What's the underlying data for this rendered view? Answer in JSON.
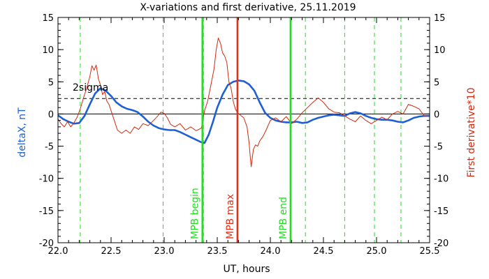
{
  "chart_data": {
    "type": "line",
    "title": "X-variations and first derivative, 25.11.2019",
    "xlabel": "UT, hours",
    "ylabel_left": "deltaX, nT",
    "ylabel_right": "First derivative*10",
    "xlim": [
      22.0,
      25.5
    ],
    "ylim_left": [
      -20,
      15
    ],
    "ylim_right": [
      -20,
      15
    ],
    "x_ticks": [
      22.0,
      22.5,
      23.0,
      23.5,
      24.0,
      24.5,
      25.0,
      25.5
    ],
    "x_tick_labels": [
      "22.0",
      "22.5",
      "23.0",
      "23.5",
      "24.0",
      "24.5",
      "25.0",
      "25.5"
    ],
    "y_ticks": [
      -20,
      -15,
      -10,
      -5,
      0,
      5,
      10,
      15
    ],
    "y_tick_labels": [
      "-20",
      "-15",
      "-10",
      "-5",
      "0",
      "5",
      "10",
      "15"
    ],
    "sigma_level": 2.4,
    "sigma_label": "2sigma",
    "grid": false,
    "colors": {
      "deltaX": "#1f5fd6",
      "derivative": "#d02a10",
      "green": "#22dd22",
      "red": "#e0301a",
      "axis": "#000000"
    },
    "vlines_dashed": [
      22.21,
      22.99,
      23.37,
      24.33,
      24.7,
      24.98,
      25.23
    ],
    "vlines_solid": [
      {
        "x": 23.36,
        "label": "MPB begin",
        "color": "#22dd22"
      },
      {
        "x": 23.69,
        "label": "MPB max",
        "color": "#e0301a"
      },
      {
        "x": 24.19,
        "label": "MPB end",
        "color": "#22dd22"
      }
    ],
    "series": [
      {
        "key": "deltaX",
        "axis": "left",
        "x": [
          22.0,
          22.05,
          22.1,
          22.15,
          22.2,
          22.25,
          22.3,
          22.35,
          22.4,
          22.45,
          22.5,
          22.55,
          22.6,
          22.65,
          22.7,
          22.75,
          22.8,
          22.85,
          22.9,
          22.95,
          23.0,
          23.05,
          23.1,
          23.15,
          23.2,
          23.25,
          23.3,
          23.35,
          23.38,
          23.42,
          23.46,
          23.5,
          23.55,
          23.6,
          23.65,
          23.7,
          23.75,
          23.8,
          23.85,
          23.9,
          23.95,
          24.0,
          24.05,
          24.1,
          24.15,
          24.2,
          24.25,
          24.3,
          24.35,
          24.4,
          24.45,
          24.5,
          24.55,
          24.6,
          24.65,
          24.7,
          24.75,
          24.8,
          24.85,
          24.9,
          24.95,
          25.0,
          25.05,
          25.1,
          25.15,
          25.2,
          25.25,
          25.3,
          25.35,
          25.4,
          25.45,
          25.5
        ],
        "y": [
          -0.2,
          -0.8,
          -1.2,
          -1.5,
          -1.4,
          -0.3,
          1.5,
          3.2,
          4.0,
          3.6,
          2.8,
          1.8,
          1.2,
          0.8,
          0.6,
          0.3,
          -0.4,
          -1.2,
          -1.8,
          -2.2,
          -2.4,
          -2.5,
          -2.5,
          -2.8,
          -3.2,
          -3.6,
          -4.0,
          -4.4,
          -4.5,
          -3.2,
          -1.2,
          1.0,
          3.0,
          4.5,
          5.0,
          5.2,
          5.1,
          4.6,
          3.6,
          1.8,
          0.2,
          -0.6,
          -1.0,
          -1.2,
          -1.3,
          -1.3,
          -1.2,
          -1.4,
          -1.3,
          -0.9,
          -0.6,
          -0.4,
          -0.2,
          -0.1,
          -0.2,
          -0.3,
          0.1,
          0.3,
          0.1,
          -0.3,
          -0.6,
          -0.8,
          -0.9,
          -0.9,
          -1.0,
          -1.2,
          -1.3,
          -1.0,
          -0.6,
          -0.4,
          -0.3,
          -0.3
        ]
      },
      {
        "key": "derivative",
        "axis": "right",
        "x": [
          22.0,
          22.03,
          22.06,
          22.09,
          22.12,
          22.15,
          22.18,
          22.21,
          22.24,
          22.27,
          22.3,
          22.32,
          22.34,
          22.36,
          22.38,
          22.4,
          22.42,
          22.44,
          22.46,
          22.48,
          22.5,
          22.53,
          22.56,
          22.6,
          22.64,
          22.68,
          22.72,
          22.76,
          22.8,
          22.85,
          22.9,
          22.94,
          22.97,
          23.0,
          23.03,
          23.06,
          23.1,
          23.15,
          23.2,
          23.25,
          23.3,
          23.35,
          23.38,
          23.41,
          23.44,
          23.47,
          23.49,
          23.51,
          23.53,
          23.55,
          23.57,
          23.59,
          23.61,
          23.63,
          23.65,
          23.67,
          23.69,
          23.72,
          23.75,
          23.78,
          23.8,
          23.81,
          23.82,
          23.84,
          23.86,
          23.88,
          23.9,
          23.93,
          23.96,
          24.0,
          24.05,
          24.1,
          24.15,
          24.2,
          24.25,
          24.3,
          24.35,
          24.4,
          24.45,
          24.5,
          24.55,
          24.6,
          24.65,
          24.7,
          24.75,
          24.8,
          24.85,
          24.9,
          24.95,
          25.0,
          25.05,
          25.1,
          25.15,
          25.2,
          25.25,
          25.3,
          25.35,
          25.4,
          25.45,
          25.5
        ],
        "y": [
          -0.8,
          -1.5,
          -2.0,
          -1.2,
          -2.0,
          -1.4,
          -0.5,
          0.8,
          2.5,
          4.0,
          5.8,
          7.5,
          6.8,
          7.6,
          5.5,
          4.5,
          3.0,
          3.5,
          2.0,
          1.5,
          0.5,
          -1.0,
          -2.5,
          -3.0,
          -2.5,
          -3.0,
          -2.0,
          -2.4,
          -1.5,
          -1.8,
          -1.0,
          -0.3,
          0.3,
          0.1,
          -0.6,
          -1.6,
          -2.0,
          -1.5,
          -2.5,
          -2.0,
          -2.6,
          -2.2,
          0.5,
          2.0,
          4.5,
          7.0,
          10.0,
          11.8,
          11.0,
          9.5,
          9.0,
          8.0,
          5.0,
          4.0,
          2.0,
          0.8,
          0.2,
          -0.2,
          -0.6,
          -2.0,
          -4.5,
          -6.5,
          -8.2,
          -5.5,
          -4.8,
          -5.0,
          -4.2,
          -3.5,
          -2.5,
          -1.0,
          -0.6,
          -1.2,
          -0.4,
          -1.5,
          -0.8,
          0.2,
          1.0,
          1.8,
          2.5,
          1.8,
          0.8,
          0.3,
          0.2,
          -0.3,
          -0.8,
          -1.2,
          -0.3,
          -1.0,
          -1.5,
          -1.0,
          -0.5,
          -0.9,
          0.0,
          0.4,
          0.0,
          1.5,
          1.2,
          0.8,
          -0.3,
          -0.2
        ]
      }
    ]
  }
}
